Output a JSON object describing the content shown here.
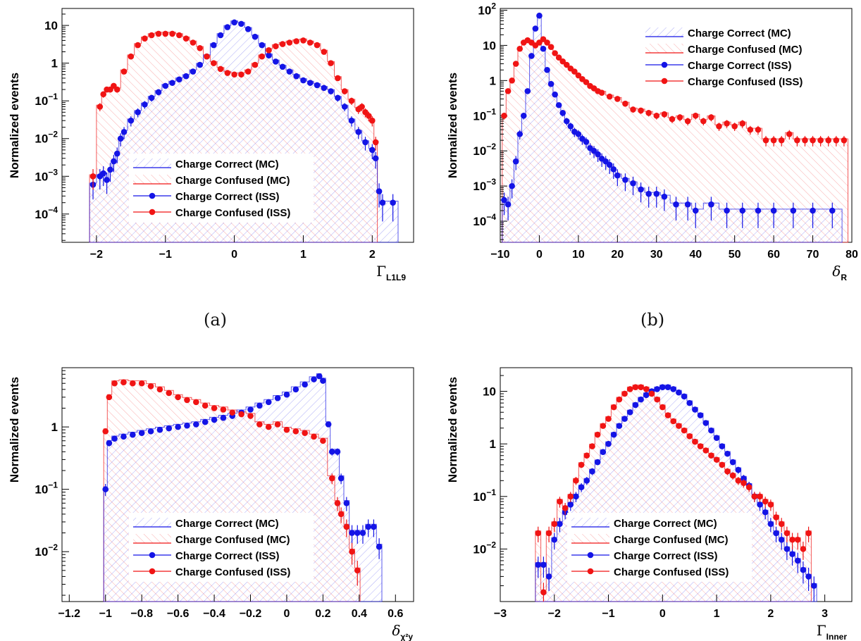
{
  "colors": {
    "blue": "#1414e6",
    "red": "#f01414",
    "frame": "#000000"
  },
  "chart_data": [
    {
      "id": "a",
      "type": "line",
      "caption": "(a)",
      "ylabel": "Normalized events",
      "xlabel": "Γ",
      "xlabel_sub": "L1L9",
      "xlim": [
        -2.5,
        2.6
      ],
      "ylim_log10": [
        -4.75,
        1.45
      ],
      "yscale": "log",
      "xticks": [
        -2,
        -1,
        0,
        1,
        2
      ],
      "yticks": [
        {
          "value": 10,
          "label": "10"
        },
        {
          "value": 1,
          "label": "1"
        },
        {
          "value": 0.1,
          "label": "10",
          "exp": "−1"
        },
        {
          "value": 0.01,
          "label": "10",
          "exp": "−2"
        },
        {
          "value": 0.001,
          "label": "10",
          "exp": "−3"
        },
        {
          "value": 0.0001,
          "label": "10",
          "exp": "−4"
        }
      ],
      "legend": [
        "Charge Correct (MC)",
        "Charge Confused (MC)",
        "Charge Correct (ISS)",
        "Charge Confused (ISS)"
      ],
      "legend_position": "bottom-center",
      "series": [
        {
          "name": "Charge Correct (ISS)",
          "color": "blue",
          "x": [
            -2.05,
            -1.95,
            -1.9,
            -1.85,
            -1.8,
            -1.75,
            -1.7,
            -1.65,
            -1.6,
            -1.5,
            -1.4,
            -1.3,
            -1.2,
            -1.1,
            -1,
            -0.9,
            -0.8,
            -0.7,
            -0.6,
            -0.5,
            -0.4,
            -0.3,
            -0.2,
            -0.1,
            0,
            0.1,
            0.2,
            0.3,
            0.4,
            0.5,
            0.6,
            0.7,
            0.8,
            0.9,
            1,
            1.1,
            1.2,
            1.3,
            1.4,
            1.5,
            1.6,
            1.7,
            1.8,
            1.9,
            2,
            2.05,
            2.1,
            2.15,
            2.3
          ],
          "y": [
            0.0006,
            0.001,
            0.0012,
            0.0008,
            0.0015,
            0.0025,
            0.004,
            0.01,
            0.015,
            0.03,
            0.05,
            0.08,
            0.12,
            0.17,
            0.25,
            0.3,
            0.37,
            0.45,
            0.6,
            0.9,
            1.5,
            3,
            5.5,
            9,
            12,
            11,
            8,
            5,
            3,
            1.6,
            1.1,
            0.8,
            0.6,
            0.45,
            0.35,
            0.3,
            0.26,
            0.22,
            0.18,
            0.12,
            0.07,
            0.03,
            0.015,
            0.008,
            0.005,
            0.003,
            0.0004,
            0.0002,
            0.0002
          ]
        },
        {
          "name": "Charge Confused (ISS)",
          "color": "red",
          "x": [
            -2.05,
            -1.95,
            -1.9,
            -1.85,
            -1.8,
            -1.75,
            -1.7,
            -1.6,
            -1.5,
            -1.4,
            -1.3,
            -1.2,
            -1.1,
            -1,
            -0.9,
            -0.8,
            -0.7,
            -0.6,
            -0.5,
            -0.4,
            -0.3,
            -0.2,
            -0.1,
            0,
            0.1,
            0.2,
            0.3,
            0.4,
            0.5,
            0.6,
            0.7,
            0.8,
            0.9,
            1,
            1.1,
            1.2,
            1.3,
            1.4,
            1.5,
            1.6,
            1.7,
            1.8,
            1.85,
            1.9,
            1.95,
            2,
            2.05
          ],
          "y": [
            0.001,
            0.07,
            0.15,
            0.2,
            0.2,
            0.25,
            0.2,
            0.6,
            1.5,
            3,
            4.5,
            5.5,
            6,
            6,
            6,
            5.5,
            4.5,
            3.5,
            2.5,
            1.5,
            1,
            0.7,
            0.55,
            0.5,
            0.5,
            0.6,
            0.9,
            1.5,
            2.2,
            2.8,
            3.2,
            3.5,
            3.8,
            4,
            3.5,
            3,
            2,
            1,
            0.4,
            0.18,
            0.1,
            0.06,
            0.07,
            0.05,
            0.04,
            0.03,
            0.008
          ]
        }
      ]
    },
    {
      "id": "b",
      "type": "line",
      "caption": "(b)",
      "ylabel": "Normalized events",
      "xlabel": "δ",
      "xlabel_sub": "R",
      "xlim": [
        -10,
        80
      ],
      "ylim_log10": [
        -4.6,
        2.05
      ],
      "yscale": "log",
      "xticks": [
        -10,
        0,
        10,
        20,
        30,
        40,
        50,
        60,
        70,
        80
      ],
      "yticks": [
        {
          "value": 100,
          "label": "10",
          "exp": "2"
        },
        {
          "value": 10,
          "label": "10"
        },
        {
          "value": 1,
          "label": "1"
        },
        {
          "value": 0.1,
          "label": "10",
          "exp": "−1"
        },
        {
          "value": 0.01,
          "label": "10",
          "exp": "−2"
        },
        {
          "value": 0.001,
          "label": "10",
          "exp": "−3"
        },
        {
          "value": 0.0001,
          "label": "10",
          "exp": "−4"
        }
      ],
      "legend": [
        "Charge Correct (MC)",
        "Charge Confused (MC)",
        "Charge Correct (ISS)",
        "Charge Confused (ISS)"
      ],
      "legend_position": "top-right",
      "series": [
        {
          "name": "Charge Correct (ISS)",
          "color": "blue",
          "x": [
            -9,
            -8,
            -7,
            -6,
            -5,
            -4,
            -3,
            -2,
            -1,
            0,
            1,
            2,
            3,
            4,
            5,
            6,
            7,
            8,
            9,
            10,
            11,
            12,
            13,
            14,
            15,
            16,
            17,
            18,
            19,
            20,
            22,
            24,
            26,
            28,
            30,
            32,
            35,
            38,
            40,
            44,
            48,
            52,
            56,
            60,
            65,
            70,
            75
          ],
          "y": [
            0.0004,
            0.0003,
            0.001,
            0.005,
            0.03,
            0.1,
            0.5,
            5,
            30,
            70,
            8,
            2,
            0.8,
            0.4,
            0.2,
            0.12,
            0.07,
            0.05,
            0.035,
            0.03,
            0.022,
            0.018,
            0.012,
            0.01,
            0.008,
            0.006,
            0.005,
            0.004,
            0.003,
            0.002,
            0.0015,
            0.0012,
            0.0008,
            0.0006,
            0.0006,
            0.0005,
            0.0003,
            0.0003,
            0.0002,
            0.0003,
            0.0002,
            0.0002,
            0.0002,
            0.0002,
            0.0002,
            0.0002,
            0.0002
          ]
        },
        {
          "name": "Charge Confused (ISS)",
          "color": "red",
          "x": [
            -9,
            -8,
            -7,
            -6,
            -5,
            -4,
            -3,
            -2,
            -1,
            0,
            1,
            2,
            3,
            4,
            5,
            6,
            7,
            8,
            9,
            10,
            11,
            12,
            13,
            14,
            15,
            16,
            18,
            20,
            22,
            24,
            26,
            28,
            30,
            32,
            34,
            36,
            38,
            40,
            42,
            44,
            46,
            48,
            50,
            52,
            54,
            56,
            58,
            60,
            62,
            64,
            66,
            68,
            70,
            72,
            74,
            76,
            78
          ],
          "y": [
            0.1,
            0.5,
            1,
            3,
            8,
            12,
            14,
            12,
            10,
            12,
            15,
            12,
            9,
            6,
            4.5,
            3.5,
            2.8,
            2.2,
            1.8,
            1.4,
            1.1,
            0.9,
            0.7,
            0.6,
            0.5,
            0.45,
            0.35,
            0.3,
            0.22,
            0.15,
            0.14,
            0.12,
            0.1,
            0.11,
            0.08,
            0.09,
            0.07,
            0.1,
            0.07,
            0.09,
            0.05,
            0.06,
            0.05,
            0.06,
            0.04,
            0.04,
            0.02,
            0.02,
            0.02,
            0.03,
            0.02,
            0.02,
            0.02,
            0.02,
            0.02,
            0.02,
            0.02
          ]
        }
      ]
    },
    {
      "id": "c",
      "type": "line",
      "ylabel": "Normalized events",
      "xlabel": "δ",
      "xlabel_sub": "χ²y",
      "xlim": [
        -1.24,
        0.7
      ],
      "ylim_log10": [
        -2.8,
        0.95
      ],
      "yscale": "log",
      "xticks": [
        -1.2,
        -1,
        -0.8,
        -0.6,
        -0.4,
        -0.2,
        0,
        0.2,
        0.4,
        0.6
      ],
      "yticks": [
        {
          "value": 1,
          "label": "1"
        },
        {
          "value": 0.1,
          "label": "10",
          "exp": "−1"
        },
        {
          "value": 0.01,
          "label": "10",
          "exp": "−2"
        }
      ],
      "legend": [
        "Charge Correct (MC)",
        "Charge Confused (MC)",
        "Charge Correct (ISS)",
        "Charge Confused (ISS)"
      ],
      "legend_position": "bottom-center",
      "series": [
        {
          "name": "Charge Correct (ISS)",
          "color": "blue",
          "x": [
            -1,
            -0.98,
            -0.95,
            -0.9,
            -0.85,
            -0.8,
            -0.75,
            -0.7,
            -0.65,
            -0.6,
            -0.55,
            -0.5,
            -0.45,
            -0.4,
            -0.35,
            -0.3,
            -0.25,
            -0.2,
            -0.15,
            -0.1,
            -0.05,
            0,
            0.05,
            0.1,
            0.15,
            0.18,
            0.2,
            0.23,
            0.25,
            0.28,
            0.3,
            0.33,
            0.36,
            0.39,
            0.42,
            0.45,
            0.48,
            0.51
          ],
          "y": [
            0.1,
            0.55,
            0.65,
            0.7,
            0.75,
            0.8,
            0.85,
            0.9,
            0.95,
            1,
            1.05,
            1.1,
            1.2,
            1.3,
            1.4,
            1.5,
            1.7,
            1.9,
            2.2,
            2.5,
            2.9,
            3.3,
            4,
            4.8,
            5.8,
            6.5,
            5.5,
            1.1,
            0.4,
            0.4,
            0.15,
            0.06,
            0.02,
            0.02,
            0.02,
            0.025,
            0.025,
            0.012
          ]
        },
        {
          "name": "Charge Confused (ISS)",
          "color": "red",
          "x": [
            -1,
            -0.98,
            -0.95,
            -0.9,
            -0.85,
            -0.8,
            -0.75,
            -0.7,
            -0.65,
            -0.6,
            -0.55,
            -0.5,
            -0.45,
            -0.4,
            -0.35,
            -0.3,
            -0.25,
            -0.2,
            -0.15,
            -0.1,
            -0.05,
            0,
            0.05,
            0.1,
            0.15,
            0.2,
            0.25,
            0.28,
            0.3,
            0.33,
            0.36,
            0.39
          ],
          "y": [
            0.85,
            3,
            5,
            5.2,
            5,
            5,
            4.5,
            4,
            3.5,
            3,
            2.7,
            2.5,
            2.2,
            2,
            1.9,
            1.7,
            1.6,
            1.5,
            1.1,
            1,
            1.1,
            0.9,
            0.85,
            0.8,
            0.7,
            0.6,
            0.15,
            0.06,
            0.04,
            0.025,
            0.01,
            0.005
          ]
        }
      ]
    },
    {
      "id": "d",
      "type": "line",
      "ylabel": "Normalized events",
      "xlabel": "Γ",
      "xlabel_sub": "Inner",
      "xlim": [
        -3,
        3.5
      ],
      "ylim_log10": [
        -3.0,
        1.45
      ],
      "yscale": "log",
      "xticks": [
        -3,
        -2,
        -1,
        0,
        1,
        2,
        3
      ],
      "yticks": [
        {
          "value": 10,
          "label": "10"
        },
        {
          "value": 1,
          "label": "1"
        },
        {
          "value": 0.1,
          "label": "10",
          "exp": "−1"
        },
        {
          "value": 0.01,
          "label": "10",
          "exp": "−2"
        }
      ],
      "legend": [
        "Charge Correct (MC)",
        "Charge Confused (MC)",
        "Charge Correct (ISS)",
        "Charge Confused (ISS)"
      ],
      "legend_position": "bottom-center",
      "series": [
        {
          "name": "Charge Correct (ISS)",
          "color": "blue",
          "x": [
            -2.3,
            -2.2,
            -2.1,
            -2,
            -1.9,
            -1.8,
            -1.7,
            -1.6,
            -1.5,
            -1.4,
            -1.3,
            -1.2,
            -1.1,
            -1,
            -0.9,
            -0.8,
            -0.7,
            -0.6,
            -0.5,
            -0.4,
            -0.3,
            -0.2,
            -0.1,
            0,
            0.1,
            0.2,
            0.3,
            0.4,
            0.5,
            0.6,
            0.7,
            0.8,
            0.9,
            1,
            1.1,
            1.2,
            1.3,
            1.4,
            1.5,
            1.6,
            1.7,
            1.8,
            1.9,
            2,
            2.1,
            2.2,
            2.3,
            2.4,
            2.5,
            2.6,
            2.7,
            2.8
          ],
          "y": [
            0.005,
            0.005,
            0.003,
            0.015,
            0.03,
            0.05,
            0.07,
            0.1,
            0.15,
            0.2,
            0.3,
            0.45,
            0.7,
            1,
            1.5,
            2.2,
            3,
            4,
            5.5,
            7,
            8.5,
            10,
            11,
            12,
            12,
            11,
            9.5,
            8,
            6,
            4.5,
            3.5,
            2.5,
            1.8,
            1.3,
            0.9,
            0.65,
            0.45,
            0.32,
            0.22,
            0.16,
            0.1,
            0.07,
            0.05,
            0.03,
            0.02,
            0.015,
            0.01,
            0.008,
            0.006,
            0.004,
            0.003,
            0.002
          ]
        },
        {
          "name": "Charge Confused (ISS)",
          "color": "red",
          "x": [
            -2.3,
            -2.2,
            -2.1,
            -2,
            -1.9,
            -1.8,
            -1.7,
            -1.6,
            -1.5,
            -1.4,
            -1.3,
            -1.2,
            -1.1,
            -1,
            -0.9,
            -0.8,
            -0.7,
            -0.6,
            -0.5,
            -0.4,
            -0.3,
            -0.2,
            -0.1,
            0,
            0.1,
            0.2,
            0.3,
            0.4,
            0.5,
            0.6,
            0.7,
            0.8,
            0.9,
            1,
            1.1,
            1.2,
            1.3,
            1.4,
            1.5,
            1.6,
            1.7,
            1.8,
            1.9,
            2,
            2.1,
            2.2,
            2.3,
            2.4,
            2.5,
            2.6,
            2.7
          ],
          "y": [
            0.02,
            0.0015,
            0.02,
            0.03,
            0.08,
            0.06,
            0.1,
            0.2,
            0.4,
            0.6,
            0.9,
            1.5,
            2.2,
            3,
            5,
            7,
            9,
            11,
            12,
            12,
            11,
            9,
            7,
            5,
            3.5,
            2.7,
            2.2,
            1.8,
            1.4,
            1.1,
            0.9,
            0.75,
            0.6,
            0.5,
            0.4,
            0.3,
            0.25,
            0.2,
            0.18,
            0.15,
            0.1,
            0.1,
            0.08,
            0.07,
            0.04,
            0.03,
            0.02,
            0.015,
            0.015,
            0.01,
            0.02
          ]
        }
      ]
    }
  ]
}
